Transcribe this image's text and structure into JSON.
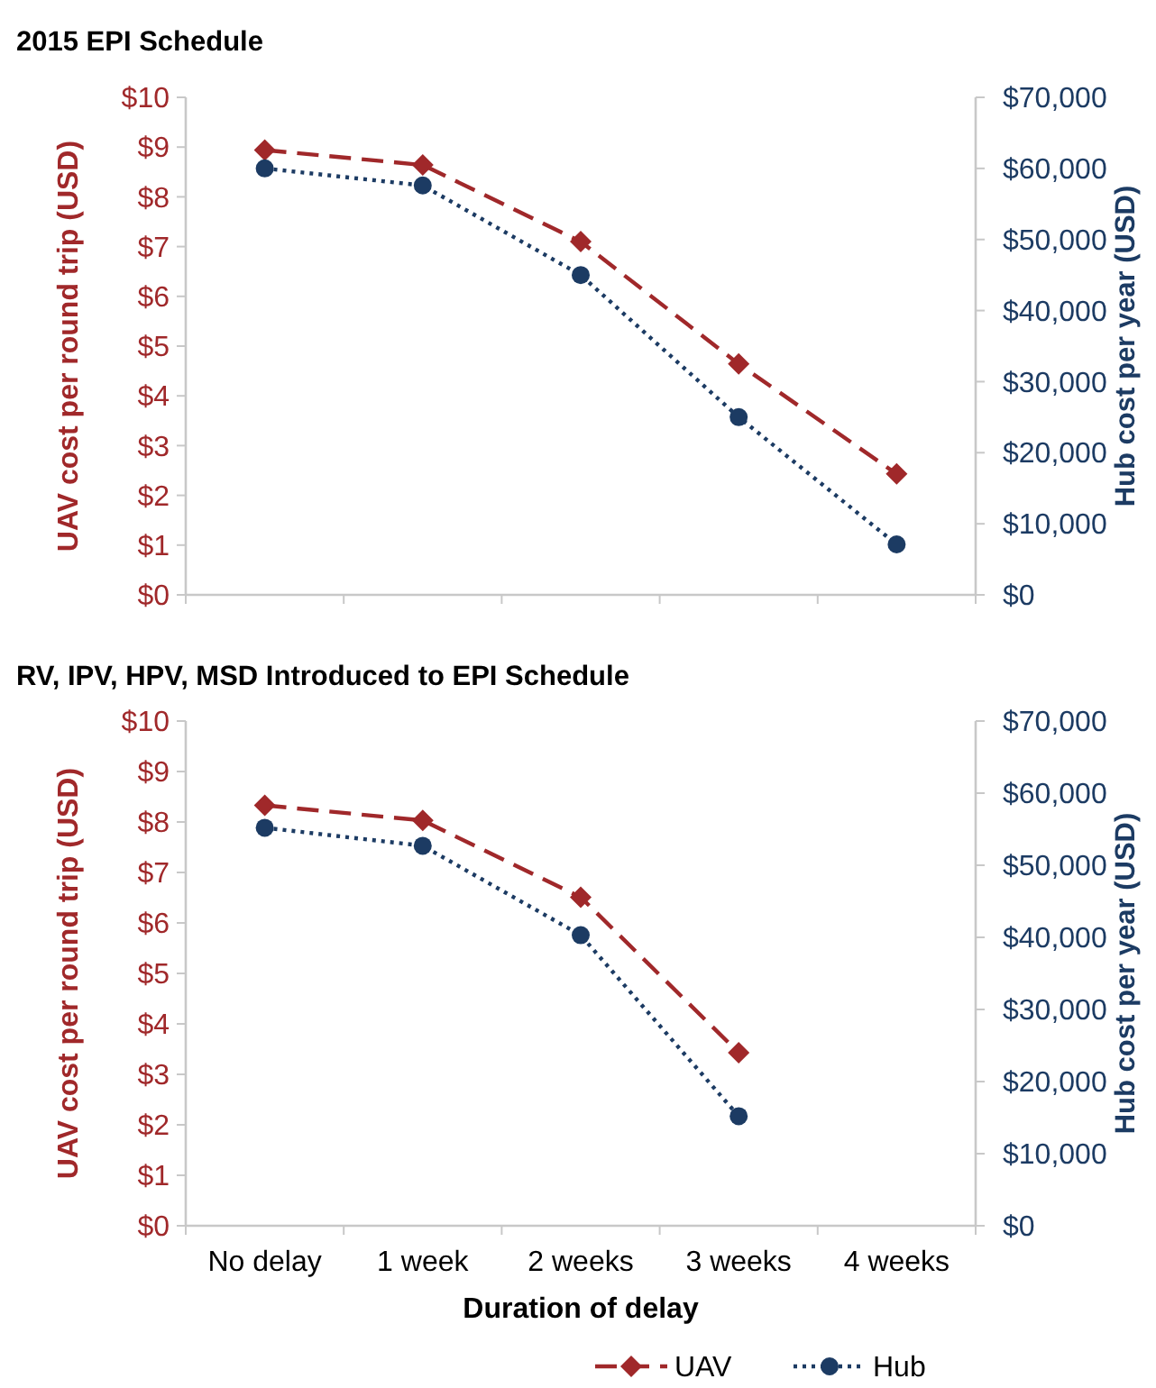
{
  "chart_data": [
    {
      "type": "line",
      "title": "2015 EPI Schedule",
      "ylabel": "UAV cost per round trip (USD)",
      "y2label": "Hub cost per year (USD)",
      "series": [
        {
          "color": "#a0282a",
          "values": [
            8.94,
            8.64,
            7.1,
            4.64,
            2.43
          ],
          "marker": "diamond",
          "line_style": "dashed"
        },
        {
          "color": "#1c3b63",
          "values": [
            60000,
            57600,
            45000,
            25000,
            7100
          ],
          "axis": "y2",
          "marker": "circle",
          "line_style": "dotted"
        }
      ],
      "ylim": [
        0,
        10
      ],
      "yticks": [
        {
          "value": 0,
          "label": "$0"
        },
        {
          "value": 1,
          "label": "$1"
        },
        {
          "value": 2,
          "label": "$2"
        },
        {
          "value": 3,
          "label": "$3"
        },
        {
          "value": 4,
          "label": "$4"
        },
        {
          "value": 5,
          "label": "$5"
        },
        {
          "value": 6,
          "label": "$6"
        },
        {
          "value": 7,
          "label": "$7"
        },
        {
          "value": 8,
          "label": "$8"
        },
        {
          "value": 9,
          "label": "$9"
        },
        {
          "value": 10,
          "label": "$10"
        }
      ],
      "y2lim": [
        0,
        70000
      ],
      "y2ticks": [
        {
          "value": 0,
          "label": "$0"
        },
        {
          "value": 10000,
          "label": "$10,000"
        },
        {
          "value": 20000,
          "label": "$20,000"
        },
        {
          "value": 30000,
          "label": "$30,000"
        },
        {
          "value": 40000,
          "label": "$40,000"
        },
        {
          "value": 50000,
          "label": "$50,000"
        },
        {
          "value": 60000,
          "label": "$60,000"
        },
        {
          "value": 70000,
          "label": "$70,000"
        }
      ],
      "tick_labels": "y",
      "grid": false,
      "legend": false
    },
    {
      "type": "line",
      "title": "RV, IPV, HPV, MSD Introduced to EPI Schedule",
      "xlabel": "Duration of delay",
      "ylabel": "UAV cost per round trip (USD)",
      "y2label": "Hub cost per year (USD)",
      "categories": [
        "No delay",
        "1 week",
        "2 weeks",
        "3 weeks",
        "4 weeks"
      ],
      "series": [
        {
          "name": "UAV",
          "color": "#a0282a",
          "values": [
            8.33,
            8.03,
            6.51,
            3.43,
            null
          ],
          "marker": "diamond",
          "line_style": "dashed"
        },
        {
          "name": "Hub",
          "color": "#1c3b63",
          "values": [
            55200,
            52700,
            40300,
            15200,
            null
          ],
          "axis": "y2",
          "marker": "circle",
          "line_style": "dotted"
        }
      ],
      "ylim": [
        0,
        10
      ],
      "yticks": [
        {
          "value": 0,
          "label": "$0"
        },
        {
          "value": 1,
          "label": "$1"
        },
        {
          "value": 2,
          "label": "$2"
        },
        {
          "value": 3,
          "label": "$3"
        },
        {
          "value": 4,
          "label": "$4"
        },
        {
          "value": 5,
          "label": "$5"
        },
        {
          "value": 6,
          "label": "$6"
        },
        {
          "value": 7,
          "label": "$7"
        },
        {
          "value": 8,
          "label": "$8"
        },
        {
          "value": 9,
          "label": "$9"
        },
        {
          "value": 10,
          "label": "$10"
        }
      ],
      "y2lim": [
        0,
        70000
      ],
      "y2ticks": [
        {
          "value": 0,
          "label": "$0"
        },
        {
          "value": 10000,
          "label": "$10,000"
        },
        {
          "value": 20000,
          "label": "$20,000"
        },
        {
          "value": 30000,
          "label": "$30,000"
        },
        {
          "value": 40000,
          "label": "$40,000"
        },
        {
          "value": 50000,
          "label": "$50,000"
        },
        {
          "value": 60000,
          "label": "$60,000"
        },
        {
          "value": 70000,
          "label": "$70,000"
        }
      ],
      "grid": false,
      "legend": "bottom"
    }
  ]
}
